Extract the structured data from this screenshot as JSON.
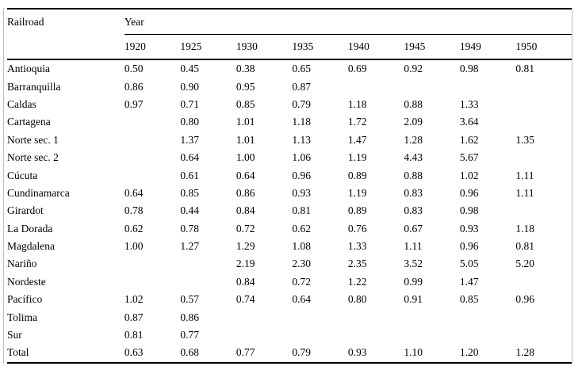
{
  "chart_data": {
    "type": "table",
    "corner_label": "Railroad",
    "group_label": "Year",
    "years": [
      "1920",
      "1925",
      "1930",
      "1935",
      "1940",
      "1945",
      "1949",
      "1950"
    ],
    "rows": [
      {
        "name": "Antioquia",
        "values": [
          "0.50",
          "0.45",
          "0.38",
          "0.65",
          "0.69",
          "0.92",
          "0.98",
          "0.81"
        ]
      },
      {
        "name": "Barranquilla",
        "values": [
          "0.86",
          "0.90",
          "0.95",
          "0.87",
          "",
          "",
          "",
          ""
        ]
      },
      {
        "name": "Caldas",
        "values": [
          "0.97",
          "0.71",
          "0.85",
          "0.79",
          "1.18",
          "0.88",
          "1.33",
          ""
        ]
      },
      {
        "name": "Cartagena",
        "values": [
          "",
          "0.80",
          "1.01",
          "1.18",
          "1.72",
          "2.09",
          "3.64",
          ""
        ]
      },
      {
        "name": "Norte sec. 1",
        "values": [
          "",
          "1.37",
          "1.01",
          "1.13",
          "1.47",
          "1.28",
          "1.62",
          "1.35"
        ]
      },
      {
        "name": "Norte sec. 2",
        "values": [
          "",
          "0.64",
          "1.00",
          "1.06",
          "1.19",
          "4.43",
          "5.67",
          ""
        ]
      },
      {
        "name": "Cúcuta",
        "values": [
          "",
          "0.61",
          "0.64",
          "0.96",
          "0.89",
          "0.88",
          "1.02",
          "1.11"
        ]
      },
      {
        "name": "Cundinamarca",
        "values": [
          "0.64",
          "0.85",
          "0.86",
          "0.93",
          "1.19",
          "0.83",
          "0.96",
          "1.11"
        ]
      },
      {
        "name": "Girardot",
        "values": [
          "0.78",
          "0.44",
          "0.84",
          "0.81",
          "0.89",
          "0.83",
          "0.98",
          ""
        ]
      },
      {
        "name": "La Dorada",
        "values": [
          "0.62",
          "0.78",
          "0.72",
          "0.62",
          "0.76",
          "0.67",
          "0.93",
          "1.18"
        ]
      },
      {
        "name": "Magdalena",
        "values": [
          "1.00",
          "1.27",
          "1.29",
          "1.08",
          "1.33",
          "1.11",
          "0.96",
          "0.81"
        ]
      },
      {
        "name": "Nariño",
        "values": [
          "",
          "",
          "2.19",
          "2.30",
          "2.35",
          "3.52",
          "5.05",
          "5.20"
        ]
      },
      {
        "name": "Nordeste",
        "values": [
          "",
          "",
          "0.84",
          "0.72",
          "1.22",
          "0.99",
          "1.47",
          ""
        ]
      },
      {
        "name": "Pacífico",
        "values": [
          "1.02",
          "0.57",
          "0.74",
          "0.64",
          "0.80",
          "0.91",
          "0.85",
          "0.96"
        ]
      },
      {
        "name": "Tolima",
        "values": [
          "0.87",
          "0.86",
          "",
          "",
          "",
          "",
          "",
          ""
        ]
      },
      {
        "name": "Sur",
        "values": [
          "0.81",
          "0.77",
          "",
          "",
          "",
          "",
          "",
          ""
        ]
      },
      {
        "name": "Total",
        "values": [
          "0.63",
          "0.68",
          "0.77",
          "0.79",
          "0.93",
          "1.10",
          "1.20",
          "1.28"
        ]
      }
    ]
  },
  "colors": {
    "text": "#000000",
    "rule": "#000000",
    "frame_line": "#bdbdbd",
    "background": "#ffffff"
  }
}
